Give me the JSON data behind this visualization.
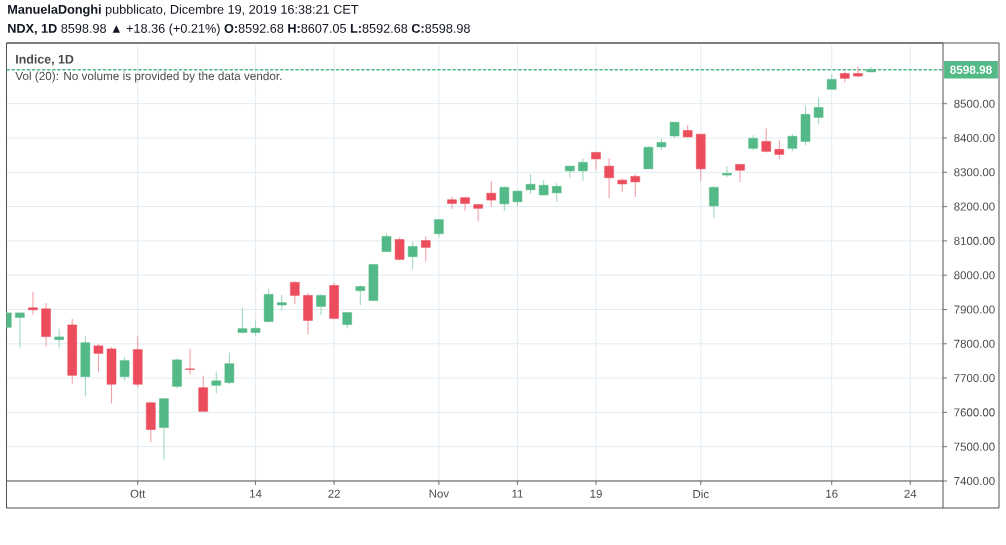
{
  "chart_data": {
    "type": "candlestick",
    "title": "**ManuelaDonghi** pubblicato, Dicembre 19, 2019 16:38:21 CET",
    "subtitle": "**NDX, 1D** 8598.98 ▲ +18.36 (+0.21%) **O:**8592.68 **H:**8607.05 **L:**8592.68 **C:**8598.98",
    "annotations": [
      "Indice, 1D",
      "Vol (20): No volume is provided by the data vendor."
    ],
    "categories": [
      null,
      null,
      null,
      null,
      null,
      null,
      null,
      null,
      null,
      null,
      "Ott",
      null,
      null,
      null,
      null,
      null,
      null,
      null,
      null,
      "14",
      null,
      null,
      null,
      null,
      null,
      "22",
      null,
      null,
      null,
      null,
      null,
      null,
      null,
      "Nov",
      null,
      null,
      null,
      null,
      null,
      "11",
      null,
      null,
      null,
      null,
      null,
      "19",
      null,
      null,
      null,
      null,
      null,
      null,
      null,
      "Dic",
      null,
      null,
      null,
      null,
      null,
      null,
      null,
      null,
      null,
      "16",
      null,
      null,
      null,
      null,
      null,
      "24",
      null,
      null
    ],
    "ohlc": [
      [
        7848,
        7893,
        7846,
        7890
      ],
      [
        7877,
        7890,
        7789,
        7890
      ],
      [
        7905,
        7952,
        7885,
        7899
      ],
      [
        7902,
        7919,
        7792,
        7821
      ],
      [
        7812,
        7844,
        7789,
        7820
      ],
      [
        7855,
        7873,
        7684,
        7708
      ],
      [
        7704,
        7823,
        7647,
        7803
      ],
      [
        7794,
        7799,
        7717,
        7772
      ],
      [
        7785,
        7790,
        7626,
        7682
      ],
      [
        7704,
        7762,
        7692,
        7751
      ],
      [
        7783,
        7823,
        7673,
        7682
      ],
      [
        7628,
        7631,
        7513,
        7550
      ],
      [
        7556,
        7640,
        7463,
        7640
      ],
      [
        7676,
        7758,
        7670,
        7753
      ],
      [
        7727,
        7785,
        7711,
        7725
      ],
      [
        7672,
        7707,
        7603,
        7603
      ],
      [
        7679,
        7719,
        7655,
        7692
      ],
      [
        7687,
        7774,
        7682,
        7742
      ],
      [
        7833,
        7905,
        7830,
        7844
      ],
      [
        7833,
        7868,
        7824,
        7845
      ],
      [
        7865,
        7961,
        7862,
        7944
      ],
      [
        7913,
        7944,
        7897,
        7920
      ],
      [
        7979,
        7982,
        7915,
        7941
      ],
      [
        7941,
        7947,
        7827,
        7868
      ],
      [
        7909,
        7944,
        7885,
        7941
      ],
      [
        7970,
        7979,
        7871,
        7874
      ],
      [
        7856,
        7891,
        7845,
        7891
      ],
      [
        7955,
        7970,
        7912,
        7967
      ],
      [
        7926,
        8034,
        7926,
        8031
      ],
      [
        8069,
        8121,
        8069,
        8113
      ],
      [
        8104,
        8110,
        8043,
        8046
      ],
      [
        8054,
        8098,
        8017,
        8084
      ],
      [
        8101,
        8113,
        8040,
        8081
      ],
      [
        8121,
        8162,
        8110,
        8162
      ],
      [
        8220,
        8229,
        8194,
        8209
      ],
      [
        8226,
        8229,
        8188,
        8209
      ],
      [
        8206,
        8207,
        8157,
        8195
      ],
      [
        8239,
        8274,
        8199,
        8219
      ],
      [
        8208,
        8259,
        8187,
        8256
      ],
      [
        8214,
        8248,
        8202,
        8245
      ],
      [
        8249,
        8294,
        8237,
        8265
      ],
      [
        8234,
        8277,
        8234,
        8262
      ],
      [
        8240,
        8268,
        8214,
        8259
      ],
      [
        8304,
        8318,
        8284,
        8318
      ],
      [
        8304,
        8341,
        8275,
        8329
      ],
      [
        8358,
        8358,
        8307,
        8339
      ],
      [
        8318,
        8341,
        8225,
        8284
      ],
      [
        8277,
        8283,
        8243,
        8266
      ],
      [
        8288,
        8294,
        8228,
        8272
      ],
      [
        8310,
        8376,
        8310,
        8373
      ],
      [
        8374,
        8399,
        8365,
        8387
      ],
      [
        8406,
        8446,
        8400,
        8446
      ],
      [
        8422,
        8437,
        8403,
        8403
      ],
      [
        8411,
        8411,
        8275,
        8310
      ],
      [
        8202,
        8259,
        8167,
        8256
      ],
      [
        8292,
        8318,
        8286,
        8297
      ],
      [
        8323,
        8323,
        8272,
        8306
      ],
      [
        8370,
        8408,
        8364,
        8399
      ],
      [
        8390,
        8428,
        8358,
        8361
      ],
      [
        8367,
        8393,
        8338,
        8352
      ],
      [
        8370,
        8411,
        8361,
        8405
      ],
      [
        8390,
        8495,
        8379,
        8469
      ],
      [
        8460,
        8518,
        8440,
        8489
      ],
      [
        8542,
        8585,
        8542,
        8571
      ],
      [
        8588,
        8594,
        8562,
        8574
      ],
      [
        8588,
        8609,
        8577,
        8580.6
      ],
      [
        8592.68,
        8607.05,
        8592.68,
        8598.98
      ],
      null,
      null,
      null,
      null,
      null
    ],
    "colors": [
      "#53b987",
      "#53b987",
      "#eb4d5c",
      "#eb4d5c",
      "#53b987",
      "#eb4d5c",
      "#53b987",
      "#eb4d5c",
      "#eb4d5c",
      "#53b987",
      "#eb4d5c",
      "#eb4d5c",
      "#53b987",
      "#53b987",
      "#eb4d5c",
      "#eb4d5c",
      "#53b987",
      "#53b987",
      "#53b987",
      "#53b987",
      "#53b987",
      "#53b987",
      "#eb4d5c",
      "#eb4d5c",
      "#53b987",
      "#eb4d5c",
      "#53b987",
      "#53b987",
      "#53b987",
      "#53b987",
      "#eb4d5c",
      "#53b987",
      "#eb4d5c",
      "#53b987",
      "#eb4d5c",
      "#eb4d5c",
      "#eb4d5c",
      "#eb4d5c",
      "#53b987",
      "#53b987",
      "#53b987",
      "#53b987",
      "#53b987",
      "#53b987",
      "#53b987",
      "#eb4d5c",
      "#eb4d5c",
      "#eb4d5c",
      "#eb4d5c",
      "#53b987",
      "#53b987",
      "#53b987",
      "#eb4d5c",
      "#eb4d5c",
      "#53b987",
      "#53b987",
      "#eb4d5c",
      "#53b987",
      "#eb4d5c",
      "#eb4d5c",
      "#53b987",
      "#53b987",
      "#53b987",
      "#53b987",
      "#eb4d5c",
      "#eb4d5c",
      "#53b987",
      null,
      null,
      null,
      null,
      null
    ],
    "ylim": [
      7400,
      8677
    ],
    "yticks": [
      {
        "value": 7400,
        "label": "7400.00"
      },
      {
        "value": 7500,
        "label": "7500.00"
      },
      {
        "value": 7600,
        "label": "7600.00"
      },
      {
        "value": 7700,
        "label": "7700.00"
      },
      {
        "value": 7800,
        "label": "7800.00"
      },
      {
        "value": 7900,
        "label": "7900.00"
      },
      {
        "value": 8000,
        "label": "8000.00"
      },
      {
        "value": 8100,
        "label": "8100.00"
      },
      {
        "value": 8200,
        "label": "8200.00"
      },
      {
        "value": 8300,
        "label": "8300.00"
      },
      {
        "value": 8400,
        "label": "8400.00"
      },
      {
        "value": 8500,
        "label": "8500.00"
      }
    ],
    "ref_lines": [
      {
        "axis": "y",
        "value": 8598.98,
        "label": "8598.98",
        "color": "#53b987",
        "line_style": "dotted"
      }
    ],
    "grid": true
  }
}
